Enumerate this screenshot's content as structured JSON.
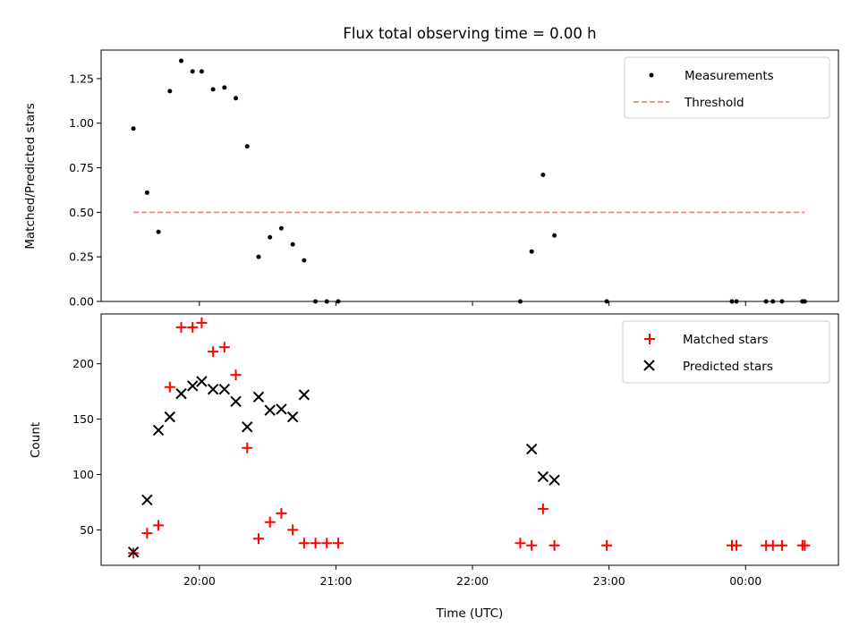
{
  "chart_data": {
    "title": "Flux total observing time = 0.00 h",
    "xlabel": "Time (UTC)",
    "x_tick_labels": [
      "20:00",
      "21:00",
      "22:00",
      "23:00",
      "00:00"
    ],
    "x_ticks_hours": [
      20,
      21,
      22,
      23,
      24
    ],
    "xlim_hours": [
      19.28,
      24.68
    ],
    "panels": [
      {
        "type": "scatter",
        "ylabel": "Matched/Predicted stars",
        "ylim": [
          0,
          1.41
        ],
        "y_ticks": [
          0.0,
          0.25,
          0.5,
          0.75,
          1.0,
          1.25
        ],
        "y_tick_labels": [
          "0.00",
          "0.25",
          "0.50",
          "0.75",
          "1.00",
          "1.25"
        ],
        "legend_position": "upper right",
        "series": [
          {
            "name": "Measurements",
            "marker": "dot",
            "color": "#000000",
            "points": [
              [
                "19:31",
                0.97
              ],
              [
                "19:37",
                0.61
              ],
              [
                "19:42",
                0.39
              ],
              [
                "19:47",
                1.18
              ],
              [
                "19:52",
                1.35
              ],
              [
                "19:57",
                1.29
              ],
              [
                "20:01",
                1.29
              ],
              [
                "20:06",
                1.19
              ],
              [
                "20:11",
                1.2
              ],
              [
                "20:16",
                1.14
              ],
              [
                "20:21",
                0.87
              ],
              [
                "20:26",
                0.25
              ],
              [
                "20:31",
                0.36
              ],
              [
                "20:36",
                0.41
              ],
              [
                "20:41",
                0.32
              ],
              [
                "20:46",
                0.23
              ],
              [
                "20:51",
                0.0
              ],
              [
                "20:56",
                0.0
              ],
              [
                "21:01",
                0.0
              ],
              [
                "22:21",
                0.0
              ],
              [
                "22:26",
                0.28
              ],
              [
                "22:31",
                0.71
              ],
              [
                "22:36",
                0.37
              ],
              [
                "22:59",
                0.0
              ],
              [
                "23:54",
                0.0
              ],
              [
                "23:56",
                0.0
              ],
              [
                "00:09",
                0.0
              ],
              [
                "00:12",
                0.0
              ],
              [
                "00:16",
                0.0
              ],
              [
                "00:25",
                0.0
              ],
              [
                "00:26",
                0.0
              ]
            ]
          },
          {
            "name": "Threshold",
            "style": "dashed",
            "color": "#ff7f7f",
            "x_range": [
              "19:31",
              "00:26"
            ],
            "y": 0.5
          }
        ]
      },
      {
        "type": "scatter",
        "ylabel": "Count",
        "ylim": [
          18,
          245
        ],
        "y_ticks": [
          50,
          100,
          150,
          200
        ],
        "y_tick_labels": [
          "50",
          "100",
          "150",
          "200"
        ],
        "legend_position": "upper right",
        "series": [
          {
            "name": "Matched stars",
            "marker": "plus",
            "color": "#ff0000",
            "points": [
              [
                "19:31",
                29
              ],
              [
                "19:37",
                47
              ],
              [
                "19:42",
                54
              ],
              [
                "19:47",
                179
              ],
              [
                "19:52",
                233
              ],
              [
                "19:57",
                233
              ],
              [
                "20:01",
                237
              ],
              [
                "20:06",
                211
              ],
              [
                "20:11",
                215
              ],
              [
                "20:16",
                190
              ],
              [
                "20:21",
                124
              ],
              [
                "20:26",
                42
              ],
              [
                "20:31",
                57
              ],
              [
                "20:36",
                65
              ],
              [
                "20:41",
                50
              ],
              [
                "20:46",
                38
              ],
              [
                "20:51",
                38
              ],
              [
                "20:56",
                38
              ],
              [
                "21:01",
                38
              ],
              [
                "22:21",
                38
              ],
              [
                "22:26",
                36
              ],
              [
                "22:31",
                69
              ],
              [
                "22:36",
                36
              ],
              [
                "22:59",
                36
              ],
              [
                "23:54",
                36
              ],
              [
                "23:56",
                36
              ],
              [
                "00:09",
                36
              ],
              [
                "00:12",
                36
              ],
              [
                "00:16",
                36
              ],
              [
                "00:25",
                36
              ],
              [
                "00:26",
                36
              ]
            ]
          },
          {
            "name": "Predicted stars",
            "marker": "x",
            "color": "#000000",
            "points": [
              [
                "19:31",
                30
              ],
              [
                "19:37",
                77
              ],
              [
                "19:42",
                140
              ],
              [
                "19:47",
                152
              ],
              [
                "19:52",
                173
              ],
              [
                "19:57",
                180
              ],
              [
                "20:01",
                184
              ],
              [
                "20:06",
                177
              ],
              [
                "20:11",
                177
              ],
              [
                "20:16",
                166
              ],
              [
                "20:21",
                143
              ],
              [
                "20:26",
                170
              ],
              [
                "20:31",
                158
              ],
              [
                "20:36",
                159
              ],
              [
                "20:41",
                152
              ],
              [
                "20:46",
                172
              ],
              [
                "22:26",
                123
              ],
              [
                "22:31",
                98
              ],
              [
                "22:36",
                95
              ]
            ]
          }
        ]
      }
    ]
  }
}
